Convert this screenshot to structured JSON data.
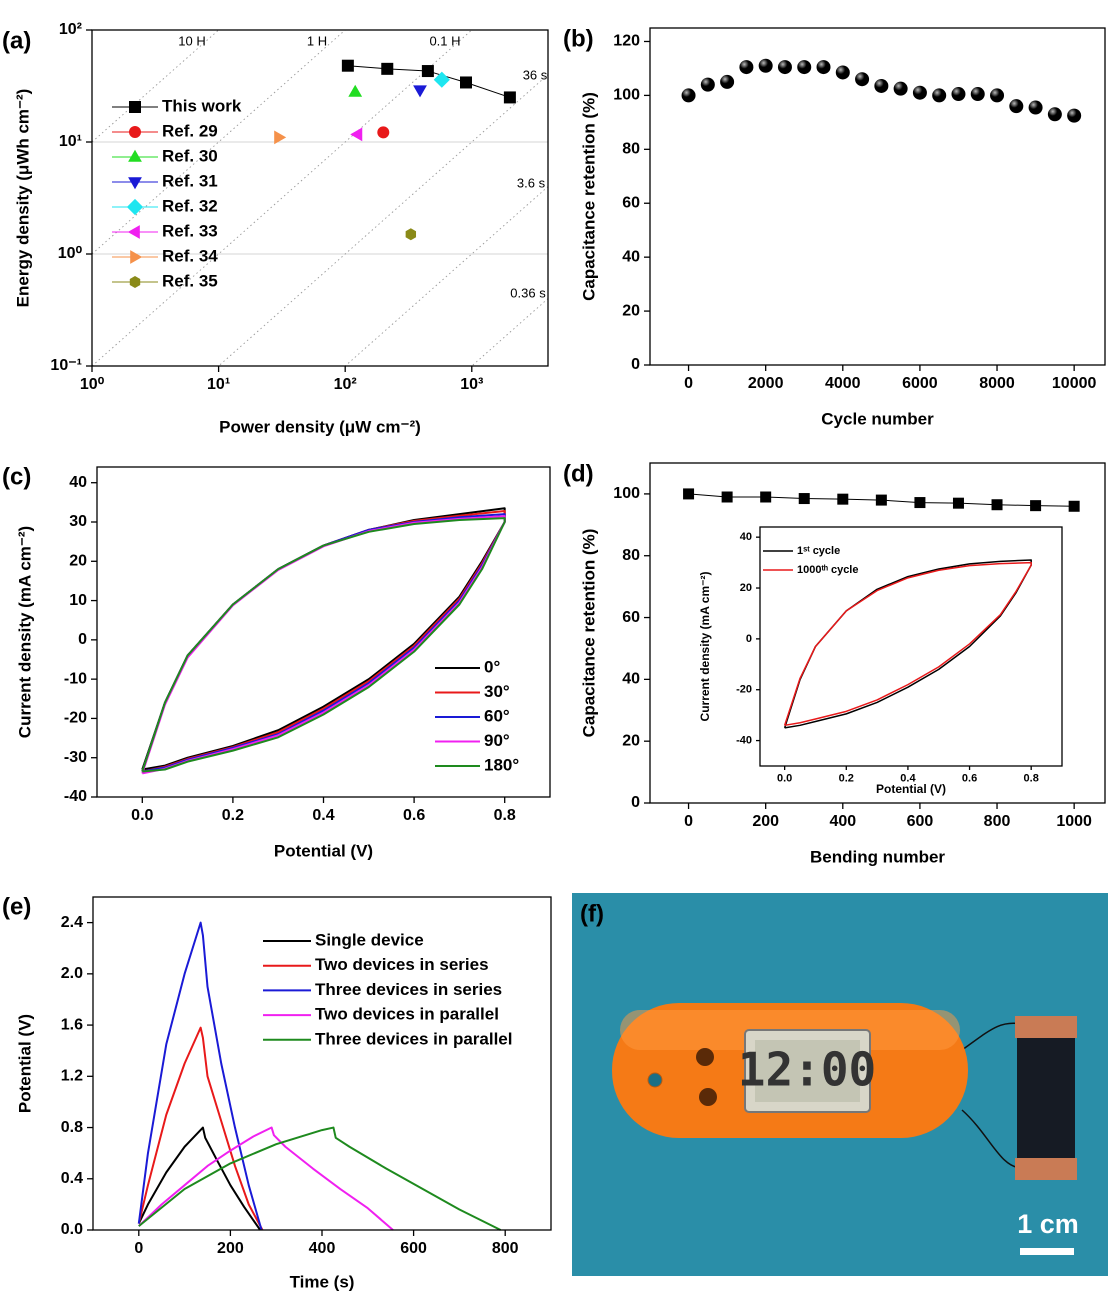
{
  "chart_data": [
    {
      "panel": "(a)",
      "type": "scatter",
      "x_label": "Power density (μW cm⁻²)",
      "y_label": "Energy density (μWh cm⁻²)",
      "log_x": true,
      "log_y": true,
      "xlim": [
        1,
        4000
      ],
      "ylim": [
        0.1,
        100
      ],
      "xticks": [
        {
          "value": 1,
          "label": "10⁰"
        },
        {
          "value": 10,
          "label": "10¹"
        },
        {
          "value": 100,
          "label": "10²"
        },
        {
          "value": 1000,
          "label": "10³"
        }
      ],
      "yticks": [
        {
          "value": 0.1,
          "label": "10⁻¹"
        },
        {
          "value": 1,
          "label": "10⁰"
        },
        {
          "value": 10,
          "label": "10¹"
        },
        {
          "value": 100,
          "label": "10²"
        }
      ],
      "grid": true,
      "legend": "upper left",
      "guides": [
        {
          "label": "10 H",
          "seconds": 36000
        },
        {
          "label": "1 H",
          "seconds": 3600
        },
        {
          "label": "0.1 H",
          "seconds": 360
        },
        {
          "label": "36 s",
          "seconds": 36
        },
        {
          "label": "3.6 s",
          "seconds": 3.6
        },
        {
          "label": "0.36 s",
          "seconds": 0.36
        }
      ],
      "series": [
        {
          "name": "This work",
          "color": "#000000",
          "marker": "square",
          "line": true,
          "x": [
            105,
            215,
            450,
            900,
            2000
          ],
          "values": [
            48,
            45,
            43,
            34,
            25
          ]
        },
        {
          "name": "Ref. 29",
          "color": "#e8191a",
          "marker": "circle",
          "x": [
            200
          ],
          "values": [
            12.2
          ]
        },
        {
          "name": "Ref. 30",
          "color": "#22dd22",
          "marker": "triangle-up",
          "x": [
            120
          ],
          "values": [
            28
          ]
        },
        {
          "name": "Ref. 31",
          "color": "#1a1ad6",
          "marker": "triangle-down",
          "x": [
            390
          ],
          "values": [
            29
          ]
        },
        {
          "name": "Ref. 32",
          "color": "#1ee6f0",
          "marker": "diamond",
          "x": [
            580
          ],
          "values": [
            36
          ]
        },
        {
          "name": "Ref. 33",
          "color": "#f020f0",
          "marker": "triangle-left",
          "x": [
            125
          ],
          "values": [
            11.7
          ]
        },
        {
          "name": "Ref. 34",
          "color": "#f5914a",
          "marker": "triangle-right",
          "x": [
            30
          ],
          "values": [
            11
          ]
        },
        {
          "name": "Ref. 35",
          "color": "#8a8a18",
          "marker": "hexagon",
          "x": [
            330
          ],
          "values": [
            1.5
          ]
        }
      ]
    },
    {
      "panel": "(b)",
      "type": "scatter",
      "x_label": "Cycle number",
      "y_label": "Capacitance retention (%)",
      "xlim": [
        -1000,
        10800
      ],
      "ylim": [
        0,
        125
      ],
      "xticks": [
        0,
        2000,
        4000,
        6000,
        8000,
        10000
      ],
      "yticks": [
        0,
        20,
        40,
        60,
        80,
        100,
        120
      ],
      "color": "#000000",
      "marker": "sphere",
      "x": [
        0,
        500,
        1000,
        1500,
        2000,
        2500,
        3000,
        3500,
        4000,
        4500,
        5000,
        5500,
        6000,
        6500,
        7000,
        7500,
        8000,
        8500,
        9000,
        9500,
        10000
      ],
      "values": [
        100,
        104,
        105,
        110.5,
        111,
        110.5,
        110.5,
        110.5,
        108.5,
        106,
        103.5,
        102.5,
        101,
        100,
        100.5,
        100.5,
        100,
        96,
        95.5,
        93,
        92.5
      ]
    },
    {
      "panel": "(c)",
      "type": "line",
      "x_label": "Potential (V)",
      "y_label": "Current density (mA cm⁻²)",
      "xlim": [
        -0.1,
        0.9
      ],
      "ylim": [
        -40,
        44
      ],
      "xticks": [
        {
          "value": 0,
          "label": "0.0"
        },
        0.2,
        0.4,
        0.6,
        0.8
      ],
      "yticks": [
        -40,
        -30,
        -20,
        -10,
        0,
        10,
        20,
        30,
        40
      ],
      "legend": "lower right",
      "x": [
        0,
        0.05,
        0.1,
        0.2,
        0.3,
        0.4,
        0.5,
        0.6,
        0.7,
        0.8,
        0.8,
        0.75,
        0.7,
        0.6,
        0.5,
        0.4,
        0.3,
        0.2,
        0.1,
        0.05,
        0
      ],
      "series": [
        {
          "name": "0°",
          "color": "#000000",
          "values": [
            -33,
            -16,
            -4,
            9,
            18,
            24,
            28,
            30.5,
            32,
            33.5,
            30,
            20,
            11,
            -1,
            -10,
            -17,
            -23,
            -27,
            -30,
            -32,
            -33
          ]
        },
        {
          "name": "30°",
          "color": "#e8191a",
          "values": [
            -33.5,
            -16,
            -4,
            9,
            18,
            24,
            28,
            30.3,
            31.6,
            32.8,
            30,
            19.5,
            10.5,
            -1.5,
            -10.5,
            -17.5,
            -23.5,
            -27.3,
            -30.3,
            -32.3,
            -33.5
          ]
        },
        {
          "name": "60°",
          "color": "#1a1ad6",
          "values": [
            -33.5,
            -16,
            -4,
            9,
            18,
            24,
            28,
            30,
            31.2,
            32,
            30,
            19,
            10,
            -2,
            -11,
            -18,
            -24,
            -27.5,
            -30.5,
            -32.5,
            -33.5
          ]
        },
        {
          "name": "90°",
          "color": "#f020f0",
          "values": [
            -34,
            -16.5,
            -4.5,
            8.8,
            17.8,
            23.8,
            27.7,
            29.8,
            30.8,
            31.5,
            30,
            18.5,
            9.5,
            -2.5,
            -11.5,
            -18.5,
            -24.3,
            -27.8,
            -30.8,
            -32.8,
            -34
          ]
        },
        {
          "name": "180°",
          "color": "#1e8a1e",
          "values": [
            -33.5,
            -16,
            -4,
            9,
            18,
            24,
            27.5,
            29.5,
            30.5,
            31,
            30,
            18,
            9,
            -3,
            -12,
            -19,
            -24.8,
            -28.2,
            -31,
            -33,
            -33.5
          ]
        }
      ]
    },
    {
      "panel": "(d)",
      "type": "scatter",
      "x_label": "Bending number",
      "y_label": "Capacitance retention (%)",
      "xlim": [
        -100,
        1080
      ],
      "ylim": [
        0,
        110
      ],
      "xticks": [
        0,
        200,
        400,
        600,
        800,
        1000
      ],
      "yticks": [
        0,
        20,
        40,
        60,
        80,
        100
      ],
      "color": "#000000",
      "marker": "square",
      "line": true,
      "x": [
        0,
        100,
        200,
        300,
        400,
        500,
        600,
        700,
        800,
        900,
        1000
      ],
      "values": [
        100,
        99,
        99,
        98.5,
        98.3,
        98,
        97.2,
        97,
        96.5,
        96.2,
        96
      ]
    },
    {
      "type": "line",
      "x_label": "Potential (V)",
      "y_label": "Current density (mA cm⁻²)",
      "xlim": [
        -0.08,
        0.9
      ],
      "ylim": [
        -50,
        44
      ],
      "xticks": [
        {
          "value": 0,
          "label": "0.0"
        },
        0.2,
        0.4,
        0.6,
        0.8
      ],
      "yticks": [
        -40,
        -20,
        0,
        20,
        40
      ],
      "legend": "upper left",
      "x": [
        0,
        0.05,
        0.1,
        0.2,
        0.3,
        0.4,
        0.5,
        0.6,
        0.7,
        0.8,
        0.8,
        0.75,
        0.7,
        0.6,
        0.5,
        0.4,
        0.3,
        0.2,
        0.1,
        0.05,
        0
      ],
      "series": [
        {
          "name": "1ˢᵗ cycle",
          "color": "#000000",
          "values": [
            -35,
            -16,
            -3,
            11,
            19.5,
            24.5,
            27.5,
            29.5,
            30.5,
            31,
            29,
            18,
            9,
            -3,
            -12,
            -19,
            -25,
            -29.5,
            -32.5,
            -34,
            -35
          ]
        },
        {
          "name": "1000ᵗʰ cycle",
          "color": "#e8191a",
          "values": [
            -34,
            -15.5,
            -3,
            11,
            19,
            24,
            27,
            28.8,
            29.6,
            30,
            29,
            18.5,
            9.5,
            -2,
            -11,
            -18,
            -24,
            -28.5,
            -31.5,
            -33,
            -34
          ]
        }
      ]
    },
    {
      "panel": "(e)",
      "type": "line",
      "x_label": "Time (s)",
      "y_label": "Potential (V)",
      "xlim": [
        -100,
        900
      ],
      "ylim": [
        0,
        2.6
      ],
      "xticks": [
        0,
        200,
        400,
        600,
        800
      ],
      "yticks": [
        {
          "value": 0,
          "label": "0.0"
        },
        0.4,
        0.8,
        1.2,
        1.6,
        {
          "value": 2,
          "label": "2.0"
        },
        2.4
      ],
      "legend": "upper right",
      "series": [
        {
          "name": "Single device",
          "color": "#000000",
          "x": [
            0,
            20,
            60,
            100,
            140,
            145,
            170,
            200,
            230,
            265
          ],
          "values": [
            0.05,
            0.2,
            0.45,
            0.65,
            0.8,
            0.72,
            0.55,
            0.35,
            0.18,
            0
          ]
        },
        {
          "name": "Two devices in series",
          "color": "#e8191a",
          "x": [
            0,
            20,
            60,
            100,
            135,
            140,
            150,
            180,
            210,
            240,
            270
          ],
          "values": [
            0.05,
            0.35,
            0.9,
            1.3,
            1.58,
            1.5,
            1.2,
            0.85,
            0.5,
            0.2,
            0
          ]
        },
        {
          "name": "Three devices in series",
          "color": "#1a1ad6",
          "x": [
            0,
            20,
            60,
            100,
            135,
            140,
            150,
            180,
            210,
            240,
            268
          ],
          "values": [
            0.05,
            0.6,
            1.45,
            2.0,
            2.4,
            2.3,
            1.9,
            1.3,
            0.8,
            0.35,
            0
          ]
        },
        {
          "name": "Two devices in parallel",
          "color": "#f020f0",
          "x": [
            0,
            50,
            100,
            150,
            200,
            250,
            290,
            295,
            320,
            380,
            440,
            500,
            555
          ],
          "values": [
            0.03,
            0.2,
            0.35,
            0.5,
            0.62,
            0.73,
            0.8,
            0.74,
            0.65,
            0.48,
            0.32,
            0.17,
            0
          ]
        },
        {
          "name": "Three devices in parallel",
          "color": "#1e8a1e",
          "x": [
            0,
            100,
            200,
            300,
            400,
            425,
            430,
            460,
            540,
            620,
            700,
            790
          ],
          "values": [
            0.03,
            0.32,
            0.52,
            0.67,
            0.78,
            0.8,
            0.72,
            0.65,
            0.48,
            0.32,
            0.16,
            0
          ]
        }
      ]
    }
  ],
  "photo": {
    "panel": "(f)",
    "lcd_text": "12:00",
    "scale_bar": "1 cm"
  }
}
